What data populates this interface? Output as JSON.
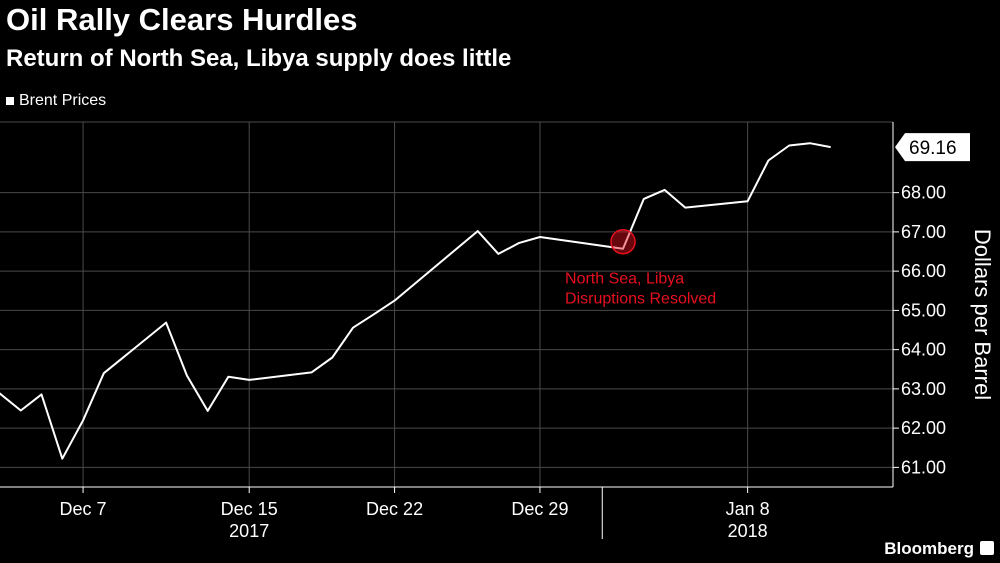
{
  "header": {
    "title": "Oil Rally Clears Hurdles",
    "subtitle": "Return of North Sea, Libya supply does little"
  },
  "source": "Bloomberg",
  "colors": {
    "background": "#000000",
    "line": "#ffffff",
    "annotation": "#e8101e"
  },
  "chart_data": {
    "type": "line",
    "title": "Oil Rally Clears Hurdles",
    "subtitle": "Return of North Sea, Libya supply does little",
    "xlabel": "",
    "ylabel": "Dollars per Barrel",
    "ylim": [
      60.5,
      69.8
    ],
    "xlim": [
      "2017-12-03",
      "2018-01-15"
    ],
    "y_ticks": [
      61,
      62,
      63,
      64,
      65,
      66,
      67,
      68
    ],
    "y_tick_labels": [
      "61.00",
      "62.00",
      "63.00",
      "64.00",
      "65.00",
      "66.00",
      "67.00",
      "68.00"
    ],
    "x_ticks": [
      {
        "date": "2017-12-07",
        "label": "Dec 7"
      },
      {
        "date": "2017-12-15",
        "label": "Dec 15"
      },
      {
        "date": "2017-12-22",
        "label": "Dec 22"
      },
      {
        "date": "2017-12-29",
        "label": "Dec 29"
      },
      {
        "date": "2018-01-08",
        "label": "Jan 8"
      }
    ],
    "year_labels": [
      {
        "date": "2017-12-15",
        "label": "2017"
      },
      {
        "date": "2018-01-08",
        "label": "2018"
      }
    ],
    "grid": true,
    "legend": "top-left",
    "series": [
      {
        "name": "Brent Prices",
        "x": [
          "2017-12-01",
          "2017-12-04",
          "2017-12-05",
          "2017-12-06",
          "2017-12-07",
          "2017-12-08",
          "2017-12-11",
          "2017-12-12",
          "2017-12-13",
          "2017-12-14",
          "2017-12-15",
          "2017-12-18",
          "2017-12-19",
          "2017-12-20",
          "2017-12-21",
          "2017-12-22",
          "2017-12-26",
          "2017-12-27",
          "2017-12-28",
          "2017-12-29",
          "2018-01-02",
          "2018-01-03",
          "2018-01-04",
          "2018-01-05",
          "2018-01-08",
          "2018-01-09",
          "2018-01-10",
          "2018-01-11",
          "2018-01-12"
        ],
        "values": [
          63.73,
          62.45,
          62.86,
          61.22,
          62.2,
          63.4,
          64.69,
          63.34,
          62.44,
          63.31,
          63.23,
          63.42,
          63.8,
          64.56,
          64.9,
          65.25,
          67.02,
          66.44,
          66.72,
          66.87,
          66.57,
          67.84,
          68.07,
          67.62,
          67.78,
          68.82,
          69.2,
          69.26,
          69.16
        ]
      }
    ],
    "last_value_label": "69.16",
    "annotations": [
      {
        "text_lines": [
          "North Sea, Libya",
          "Disruptions Resolved"
        ],
        "date": "2018-01-02",
        "value": 66.75
      }
    ]
  }
}
